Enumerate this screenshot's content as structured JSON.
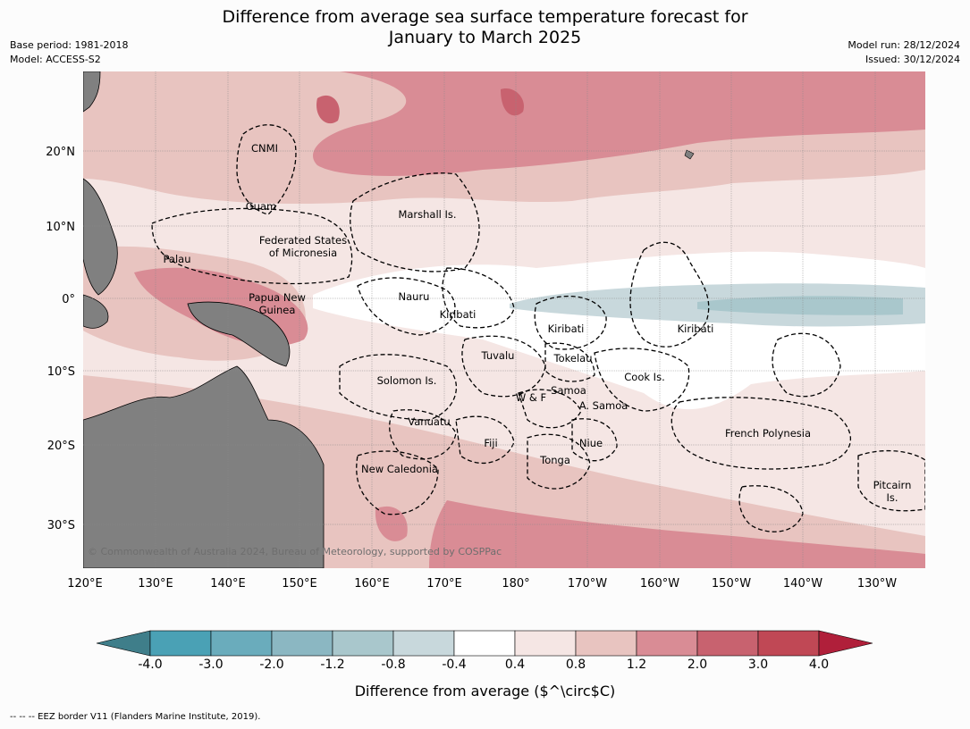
{
  "title_line1": "Difference from average sea surface temperature forecast for",
  "title_line2": "January to March 2025",
  "base_period": "Base period: 1981-2018",
  "model": "Model: ACCESS-S2",
  "model_run": "Model run: 28/12/2024",
  "issued": "Issued: 30/12/2024",
  "copyright": "© Commonwealth of Australia 2024, Bureau of Meteorology, supported by COSPPac",
  "lat_labels": [
    "20°N",
    "10°N",
    "0°",
    "10°S",
    "20°S",
    "30°S"
  ],
  "lon_labels": [
    "120°E",
    "130°E",
    "140°E",
    "150°E",
    "160°E",
    "170°E",
    "180°",
    "170°W",
    "160°W",
    "150°W",
    "140°W",
    "130°W"
  ],
  "regions": {
    "cnmi": "CNMI",
    "guam": "Guam",
    "marshall": "Marshall Is.",
    "fsm1": "Federated States",
    "fsm2": "of Micronesia",
    "palau": "Palau",
    "png1": "Papua New",
    "png2": "Guinea",
    "nauru": "Nauru",
    "kiribati1": "Kiribati",
    "kiribati2": "Kiribati",
    "kiribati3": "Kiribati",
    "tuvalu": "Tuvalu",
    "tokelau": "Tokelau",
    "cook": "Cook Is.",
    "solomon": "Solomon Is.",
    "wf": "W & F",
    "samoa": "Samoa",
    "asamoa": "A. Samoa",
    "vanuatu": "Vanuatu",
    "fiji": "Fiji",
    "niue": "Niue",
    "tonga": "Tonga",
    "fp": "French Polynesia",
    "newcal": "New Caledonia",
    "pitcairn1": "Pitcairn",
    "pitcairn2": "Is."
  },
  "colorbar": {
    "colors": [
      "#3f7e8a",
      "#4aa1b5",
      "#6aacbc",
      "#8bb7c2",
      "#a9c7cc",
      "#c8d8dc",
      "#ffffff",
      "#f5e6e4",
      "#e8c4c0",
      "#d98c95",
      "#c8626f",
      "#c04855",
      "#b01f3a"
    ],
    "ticks": [
      "-4.0",
      "-3.0",
      "-2.0",
      "-1.2",
      "-0.8",
      "-0.4",
      "0.4",
      "0.8",
      "1.2",
      "2.0",
      "3.0",
      "4.0"
    ],
    "label": "Difference from average ($^\\circ$C)"
  },
  "footer": "--  --  -- EEZ border V11 (Flanders Marine Institute, 2019)."
}
